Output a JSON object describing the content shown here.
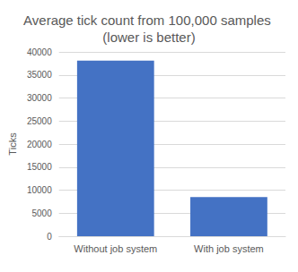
{
  "chart_data": {
    "type": "bar",
    "title": "Average tick count from 100,000 samples (lower is better)",
    "y_label": "Ticks",
    "categories": [
      "Without job system",
      "With job system"
    ],
    "values": [
      38100,
      8500
    ],
    "color": "#4472c4",
    "ylim": [
      0,
      40000
    ],
    "yticks": [
      0,
      5000,
      10000,
      15000,
      20000,
      25000,
      30000,
      35000,
      40000
    ],
    "grid": true
  }
}
